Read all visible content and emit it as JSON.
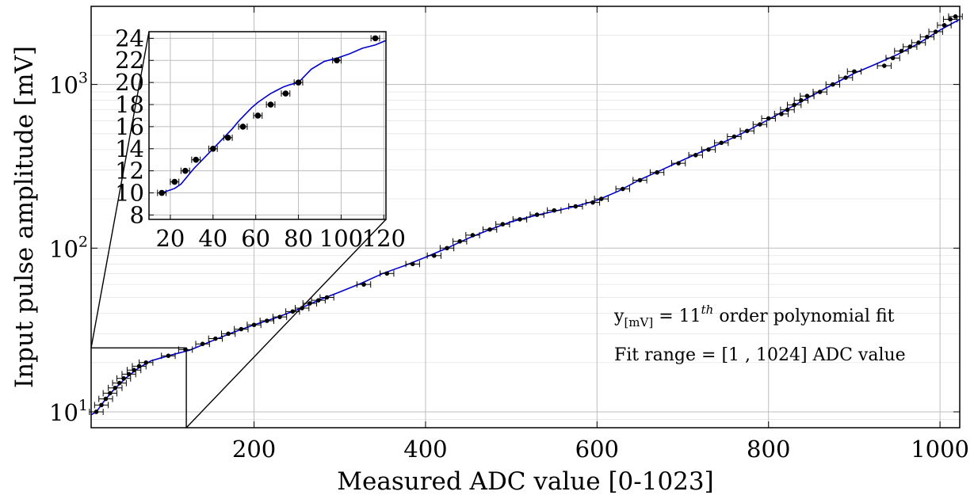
{
  "chart_data": [
    {
      "type": "scatter",
      "panel": "main",
      "xlabel": "Measured ADC value [0-1023]",
      "ylabel": "Input pulse amplitude [mV]",
      "xlim": [
        10,
        1023
      ],
      "ylim": [
        8,
        3000
      ],
      "yscale": "log",
      "grid": true,
      "x_ticks": [
        200,
        400,
        600,
        800,
        1000
      ],
      "x_tick_labels": [
        "200",
        "400",
        "600",
        "800",
        "1000"
      ],
      "y_ticks": [
        10,
        100,
        1000
      ],
      "y_tick_labels": [
        {
          "base": "10",
          "exp": "1"
        },
        {
          "base": "10",
          "exp": "2"
        },
        {
          "base": "10",
          "exp": "3"
        }
      ],
      "annotations": [
        {
          "pre": "y",
          "sub": "[mV]",
          "mid": " = 11",
          "sup": "th",
          "post": " order polynomial fit"
        },
        {
          "text": "Fit range = [1 , 1024] ADC value"
        }
      ],
      "series": [
        {
          "kind": "points",
          "x_error": 8,
          "color": "#000000",
          "points": [
            [
              16,
              10.0
            ],
            [
              22,
              11.0
            ],
            [
              27,
              12.0
            ],
            [
              32,
              13.0
            ],
            [
              38,
              14.0
            ],
            [
              43,
              15.0
            ],
            [
              48,
              16.0
            ],
            [
              54,
              17.0
            ],
            [
              60,
              18.0
            ],
            [
              66,
              19.0
            ],
            [
              74,
              20.0
            ],
            [
              100,
              22.0
            ],
            [
              120,
              24.0
            ],
            [
              140,
              26.0
            ],
            [
              155,
              28.0
            ],
            [
              170,
              30.0
            ],
            [
              185,
              32.0
            ],
            [
              200,
              34.0
            ],
            [
              215,
              36.0
            ],
            [
              230,
              38.0
            ],
            [
              245,
              41.0
            ],
            [
              256,
              43.0
            ],
            [
              265,
              46.0
            ],
            [
              275,
              48.0
            ],
            [
              285,
              50.0
            ],
            [
              328,
              60.0
            ],
            [
              355,
              70.0
            ],
            [
              385,
              80.0
            ],
            [
              410,
              90.0
            ],
            [
              425,
              100.0
            ],
            [
              440,
              110.0
            ],
            [
              455,
              120.0
            ],
            [
              475,
              130.0
            ],
            [
              490,
              140.0
            ],
            [
              510,
              150.0
            ],
            [
              530,
              160.0
            ],
            [
              550,
              170.0
            ],
            [
              575,
              180.0
            ],
            [
              595,
              190.0
            ],
            [
              605,
              200.0
            ],
            [
              630,
              230.0
            ],
            [
              650,
              260.0
            ],
            [
              670,
              290.0
            ],
            [
              695,
              330.0
            ],
            [
              715,
              370.0
            ],
            [
              730,
              400.0
            ],
            [
              745,
              440.0
            ],
            [
              760,
              480.0
            ],
            [
              775,
              520.0
            ],
            [
              790,
              570.0
            ],
            [
              800,
              620.0
            ],
            [
              815,
              660.0
            ],
            [
              822,
              700.0
            ],
            [
              830,
              750.0
            ],
            [
              838,
              800.0
            ],
            [
              845,
              850.0
            ],
            [
              860,
              900.0
            ],
            [
              875,
              1000.0
            ],
            [
              890,
              1100.0
            ],
            [
              900,
              1200.0
            ],
            [
              935,
              1300.0
            ],
            [
              945,
              1450.0
            ],
            [
              955,
              1600.0
            ],
            [
              965,
              1700.0
            ],
            [
              975,
              1800.0
            ],
            [
              985,
              1950.0
            ],
            [
              995,
              2100.0
            ],
            [
              1005,
              2300.0
            ],
            [
              1012,
              2500.0
            ],
            [
              1018,
              2600.0
            ]
          ]
        },
        {
          "kind": "fit",
          "color": "#0000cc",
          "points": [
            [
              10,
              9.6
            ],
            [
              16,
              10.0
            ],
            [
              25,
              11.6
            ],
            [
              35,
              13.4
            ],
            [
              50,
              16.0
            ],
            [
              65,
              18.5
            ],
            [
              80,
              20.5
            ],
            [
              100,
              22.0
            ],
            [
              125,
              23.8
            ],
            [
              150,
              27.0
            ],
            [
              175,
              30.5
            ],
            [
              200,
              34.0
            ],
            [
              225,
              37.5
            ],
            [
              250,
              42.0
            ],
            [
              275,
              48.0
            ],
            [
              300,
              54.0
            ],
            [
              325,
              61.0
            ],
            [
              350,
              70.0
            ],
            [
              375,
              78.0
            ],
            [
              400,
              88.0
            ],
            [
              425,
              100.0
            ],
            [
              450,
              115.0
            ],
            [
              475,
              130.0
            ],
            [
              500,
              145.0
            ],
            [
              525,
              157.0
            ],
            [
              550,
              168.0
            ],
            [
              575,
              180.0
            ],
            [
              600,
              196.0
            ],
            [
              625,
              223.0
            ],
            [
              650,
              262.0
            ],
            [
              675,
              300.0
            ],
            [
              700,
              345.0
            ],
            [
              725,
              395.0
            ],
            [
              750,
              450.0
            ],
            [
              775,
              520.0
            ],
            [
              800,
              610.0
            ],
            [
              825,
              720.0
            ],
            [
              850,
              850.0
            ],
            [
              875,
              1000.0
            ],
            [
              900,
              1170.0
            ],
            [
              925,
              1330.0
            ],
            [
              950,
              1520.0
            ],
            [
              975,
              1780.0
            ],
            [
              1000,
              2150.0
            ],
            [
              1023,
              2500.0
            ]
          ]
        }
      ]
    },
    {
      "type": "scatter",
      "panel": "inset",
      "xlim": [
        10,
        121
      ],
      "ylim": [
        7.6,
        24.6
      ],
      "grid": true,
      "x_ticks": [
        20,
        40,
        60,
        80,
        100,
        120
      ],
      "x_tick_labels": [
        "20",
        "40",
        "60",
        "80",
        "100",
        "120"
      ],
      "y_ticks": [
        8,
        10,
        12,
        14,
        16,
        18,
        20,
        22,
        24
      ],
      "y_tick_labels": [
        "8",
        "10",
        "12",
        "14",
        "16",
        "18",
        "20",
        "22",
        "24"
      ],
      "series": [
        {
          "kind": "points",
          "x_error": 2,
          "color": "#000000",
          "points": [
            [
              16,
              10.0
            ],
            [
              22,
              11.0
            ],
            [
              27,
              12.0
            ],
            [
              32,
              13.0
            ],
            [
              40,
              14.0
            ],
            [
              47,
              15.0
            ],
            [
              54,
              16.0
            ],
            [
              61,
              17.0
            ],
            [
              67,
              18.0
            ],
            [
              74,
              19.0
            ],
            [
              80,
              20.0
            ],
            [
              98,
              22.0
            ],
            [
              116,
              24.0
            ]
          ]
        },
        {
          "kind": "fit",
          "color": "#0000cc",
          "points": [
            [
              16,
              10.0
            ],
            [
              19,
              10.2
            ],
            [
              22,
              10.4
            ],
            [
              25,
              10.8
            ],
            [
              28,
              11.5
            ],
            [
              31,
              12.2
            ],
            [
              34,
              12.8
            ],
            [
              37,
              13.4
            ],
            [
              40,
              14.0
            ],
            [
              43,
              14.6
            ],
            [
              46,
              15.2
            ],
            [
              49,
              15.8
            ],
            [
              52,
              16.5
            ],
            [
              55,
              17.1
            ],
            [
              58,
              17.7
            ],
            [
              61,
              18.2
            ],
            [
              64,
              18.6
            ],
            [
              67,
              19.0
            ],
            [
              70,
              19.3
            ],
            [
              73,
              19.6
            ],
            [
              76,
              19.8
            ],
            [
              80,
              20.0
            ],
            [
              86,
              21.2
            ],
            [
              92,
              21.9
            ],
            [
              98,
              22.2
            ],
            [
              104,
              22.6
            ],
            [
              110,
              23.1
            ],
            [
              116,
              23.4
            ],
            [
              121,
              23.8
            ]
          ]
        }
      ]
    }
  ]
}
